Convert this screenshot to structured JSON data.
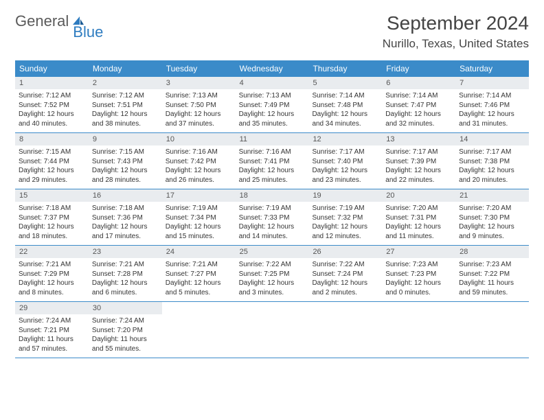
{
  "logo": {
    "word1": "General",
    "word2": "Blue"
  },
  "title": "September 2024",
  "location": "Nurillo, Texas, United States",
  "colors": {
    "header_bg": "#3b8bc9",
    "header_text": "#ffffff",
    "daynum_bg": "#e9ecef",
    "border": "#3b8bc9",
    "logo_gray": "#5a5a5a",
    "logo_blue": "#2e7cc0"
  },
  "day_names": [
    "Sunday",
    "Monday",
    "Tuesday",
    "Wednesday",
    "Thursday",
    "Friday",
    "Saturday"
  ],
  "weeks": [
    [
      {
        "num": "1",
        "sunrise": "Sunrise: 7:12 AM",
        "sunset": "Sunset: 7:52 PM",
        "daylight": "Daylight: 12 hours and 40 minutes."
      },
      {
        "num": "2",
        "sunrise": "Sunrise: 7:12 AM",
        "sunset": "Sunset: 7:51 PM",
        "daylight": "Daylight: 12 hours and 38 minutes."
      },
      {
        "num": "3",
        "sunrise": "Sunrise: 7:13 AM",
        "sunset": "Sunset: 7:50 PM",
        "daylight": "Daylight: 12 hours and 37 minutes."
      },
      {
        "num": "4",
        "sunrise": "Sunrise: 7:13 AM",
        "sunset": "Sunset: 7:49 PM",
        "daylight": "Daylight: 12 hours and 35 minutes."
      },
      {
        "num": "5",
        "sunrise": "Sunrise: 7:14 AM",
        "sunset": "Sunset: 7:48 PM",
        "daylight": "Daylight: 12 hours and 34 minutes."
      },
      {
        "num": "6",
        "sunrise": "Sunrise: 7:14 AM",
        "sunset": "Sunset: 7:47 PM",
        "daylight": "Daylight: 12 hours and 32 minutes."
      },
      {
        "num": "7",
        "sunrise": "Sunrise: 7:14 AM",
        "sunset": "Sunset: 7:46 PM",
        "daylight": "Daylight: 12 hours and 31 minutes."
      }
    ],
    [
      {
        "num": "8",
        "sunrise": "Sunrise: 7:15 AM",
        "sunset": "Sunset: 7:44 PM",
        "daylight": "Daylight: 12 hours and 29 minutes."
      },
      {
        "num": "9",
        "sunrise": "Sunrise: 7:15 AM",
        "sunset": "Sunset: 7:43 PM",
        "daylight": "Daylight: 12 hours and 28 minutes."
      },
      {
        "num": "10",
        "sunrise": "Sunrise: 7:16 AM",
        "sunset": "Sunset: 7:42 PM",
        "daylight": "Daylight: 12 hours and 26 minutes."
      },
      {
        "num": "11",
        "sunrise": "Sunrise: 7:16 AM",
        "sunset": "Sunset: 7:41 PM",
        "daylight": "Daylight: 12 hours and 25 minutes."
      },
      {
        "num": "12",
        "sunrise": "Sunrise: 7:17 AM",
        "sunset": "Sunset: 7:40 PM",
        "daylight": "Daylight: 12 hours and 23 minutes."
      },
      {
        "num": "13",
        "sunrise": "Sunrise: 7:17 AM",
        "sunset": "Sunset: 7:39 PM",
        "daylight": "Daylight: 12 hours and 22 minutes."
      },
      {
        "num": "14",
        "sunrise": "Sunrise: 7:17 AM",
        "sunset": "Sunset: 7:38 PM",
        "daylight": "Daylight: 12 hours and 20 minutes."
      }
    ],
    [
      {
        "num": "15",
        "sunrise": "Sunrise: 7:18 AM",
        "sunset": "Sunset: 7:37 PM",
        "daylight": "Daylight: 12 hours and 18 minutes."
      },
      {
        "num": "16",
        "sunrise": "Sunrise: 7:18 AM",
        "sunset": "Sunset: 7:36 PM",
        "daylight": "Daylight: 12 hours and 17 minutes."
      },
      {
        "num": "17",
        "sunrise": "Sunrise: 7:19 AM",
        "sunset": "Sunset: 7:34 PM",
        "daylight": "Daylight: 12 hours and 15 minutes."
      },
      {
        "num": "18",
        "sunrise": "Sunrise: 7:19 AM",
        "sunset": "Sunset: 7:33 PM",
        "daylight": "Daylight: 12 hours and 14 minutes."
      },
      {
        "num": "19",
        "sunrise": "Sunrise: 7:19 AM",
        "sunset": "Sunset: 7:32 PM",
        "daylight": "Daylight: 12 hours and 12 minutes."
      },
      {
        "num": "20",
        "sunrise": "Sunrise: 7:20 AM",
        "sunset": "Sunset: 7:31 PM",
        "daylight": "Daylight: 12 hours and 11 minutes."
      },
      {
        "num": "21",
        "sunrise": "Sunrise: 7:20 AM",
        "sunset": "Sunset: 7:30 PM",
        "daylight": "Daylight: 12 hours and 9 minutes."
      }
    ],
    [
      {
        "num": "22",
        "sunrise": "Sunrise: 7:21 AM",
        "sunset": "Sunset: 7:29 PM",
        "daylight": "Daylight: 12 hours and 8 minutes."
      },
      {
        "num": "23",
        "sunrise": "Sunrise: 7:21 AM",
        "sunset": "Sunset: 7:28 PM",
        "daylight": "Daylight: 12 hours and 6 minutes."
      },
      {
        "num": "24",
        "sunrise": "Sunrise: 7:21 AM",
        "sunset": "Sunset: 7:27 PM",
        "daylight": "Daylight: 12 hours and 5 minutes."
      },
      {
        "num": "25",
        "sunrise": "Sunrise: 7:22 AM",
        "sunset": "Sunset: 7:25 PM",
        "daylight": "Daylight: 12 hours and 3 minutes."
      },
      {
        "num": "26",
        "sunrise": "Sunrise: 7:22 AM",
        "sunset": "Sunset: 7:24 PM",
        "daylight": "Daylight: 12 hours and 2 minutes."
      },
      {
        "num": "27",
        "sunrise": "Sunrise: 7:23 AM",
        "sunset": "Sunset: 7:23 PM",
        "daylight": "Daylight: 12 hours and 0 minutes."
      },
      {
        "num": "28",
        "sunrise": "Sunrise: 7:23 AM",
        "sunset": "Sunset: 7:22 PM",
        "daylight": "Daylight: 11 hours and 59 minutes."
      }
    ],
    [
      {
        "num": "29",
        "sunrise": "Sunrise: 7:24 AM",
        "sunset": "Sunset: 7:21 PM",
        "daylight": "Daylight: 11 hours and 57 minutes."
      },
      {
        "num": "30",
        "sunrise": "Sunrise: 7:24 AM",
        "sunset": "Sunset: 7:20 PM",
        "daylight": "Daylight: 11 hours and 55 minutes."
      },
      null,
      null,
      null,
      null,
      null
    ]
  ]
}
